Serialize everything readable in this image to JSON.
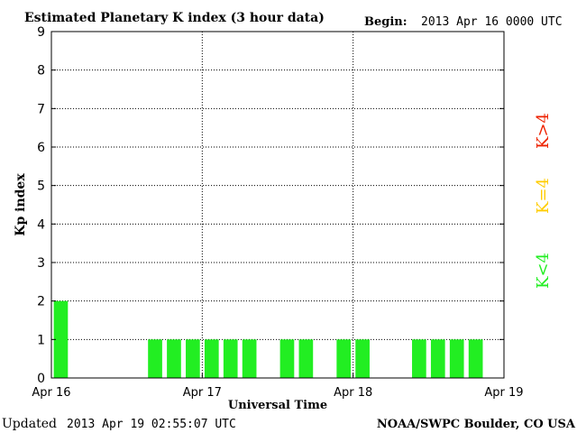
{
  "chart_data": {
    "type": "bar",
    "title": "Estimated Planetary K index (3 hour data)",
    "begin_label": "Begin:",
    "begin_value": "2013 Apr 16 0000 UTC",
    "xlabel": "Universal Time",
    "ylabel": "Kp index",
    "ylim": [
      0,
      9
    ],
    "xlim_hours": [
      0,
      72
    ],
    "y_ticks": [
      "0",
      "1",
      "2",
      "3",
      "4",
      "5",
      "6",
      "7",
      "8",
      "9"
    ],
    "x_ticks": [
      {
        "label": "Apr 16",
        "hour": 0
      },
      {
        "label": "Apr 17",
        "hour": 24
      },
      {
        "label": "Apr 18",
        "hour": 48
      },
      {
        "label": "Apr 19",
        "hour": 72
      }
    ],
    "grid": true,
    "bar_width_hours": 2.25,
    "bars": [
      {
        "hour": 0,
        "kp": 2
      },
      {
        "hour": 15,
        "kp": 1
      },
      {
        "hour": 18,
        "kp": 1
      },
      {
        "hour": 21,
        "kp": 1
      },
      {
        "hour": 24,
        "kp": 1
      },
      {
        "hour": 27,
        "kp": 1
      },
      {
        "hour": 30,
        "kp": 1
      },
      {
        "hour": 36,
        "kp": 1
      },
      {
        "hour": 39,
        "kp": 1
      },
      {
        "hour": 45,
        "kp": 1
      },
      {
        "hour": 48,
        "kp": 1
      },
      {
        "hour": 57,
        "kp": 1
      },
      {
        "hour": 60,
        "kp": 1
      },
      {
        "hour": 63,
        "kp": 1
      },
      {
        "hour": 66,
        "kp": 1
      }
    ],
    "legend": [
      {
        "label": "K<4",
        "color": "#22ee22"
      },
      {
        "label": "K=4",
        "color": "#ffcc00"
      },
      {
        "label": "K>4",
        "color": "#ee2200"
      }
    ],
    "bar_color": "#22ee22"
  },
  "footer": {
    "updated_label": "Updated",
    "updated_value": "2013 Apr 19 02:55:07 UTC",
    "source": "NOAA/SWPC Boulder, CO USA"
  }
}
